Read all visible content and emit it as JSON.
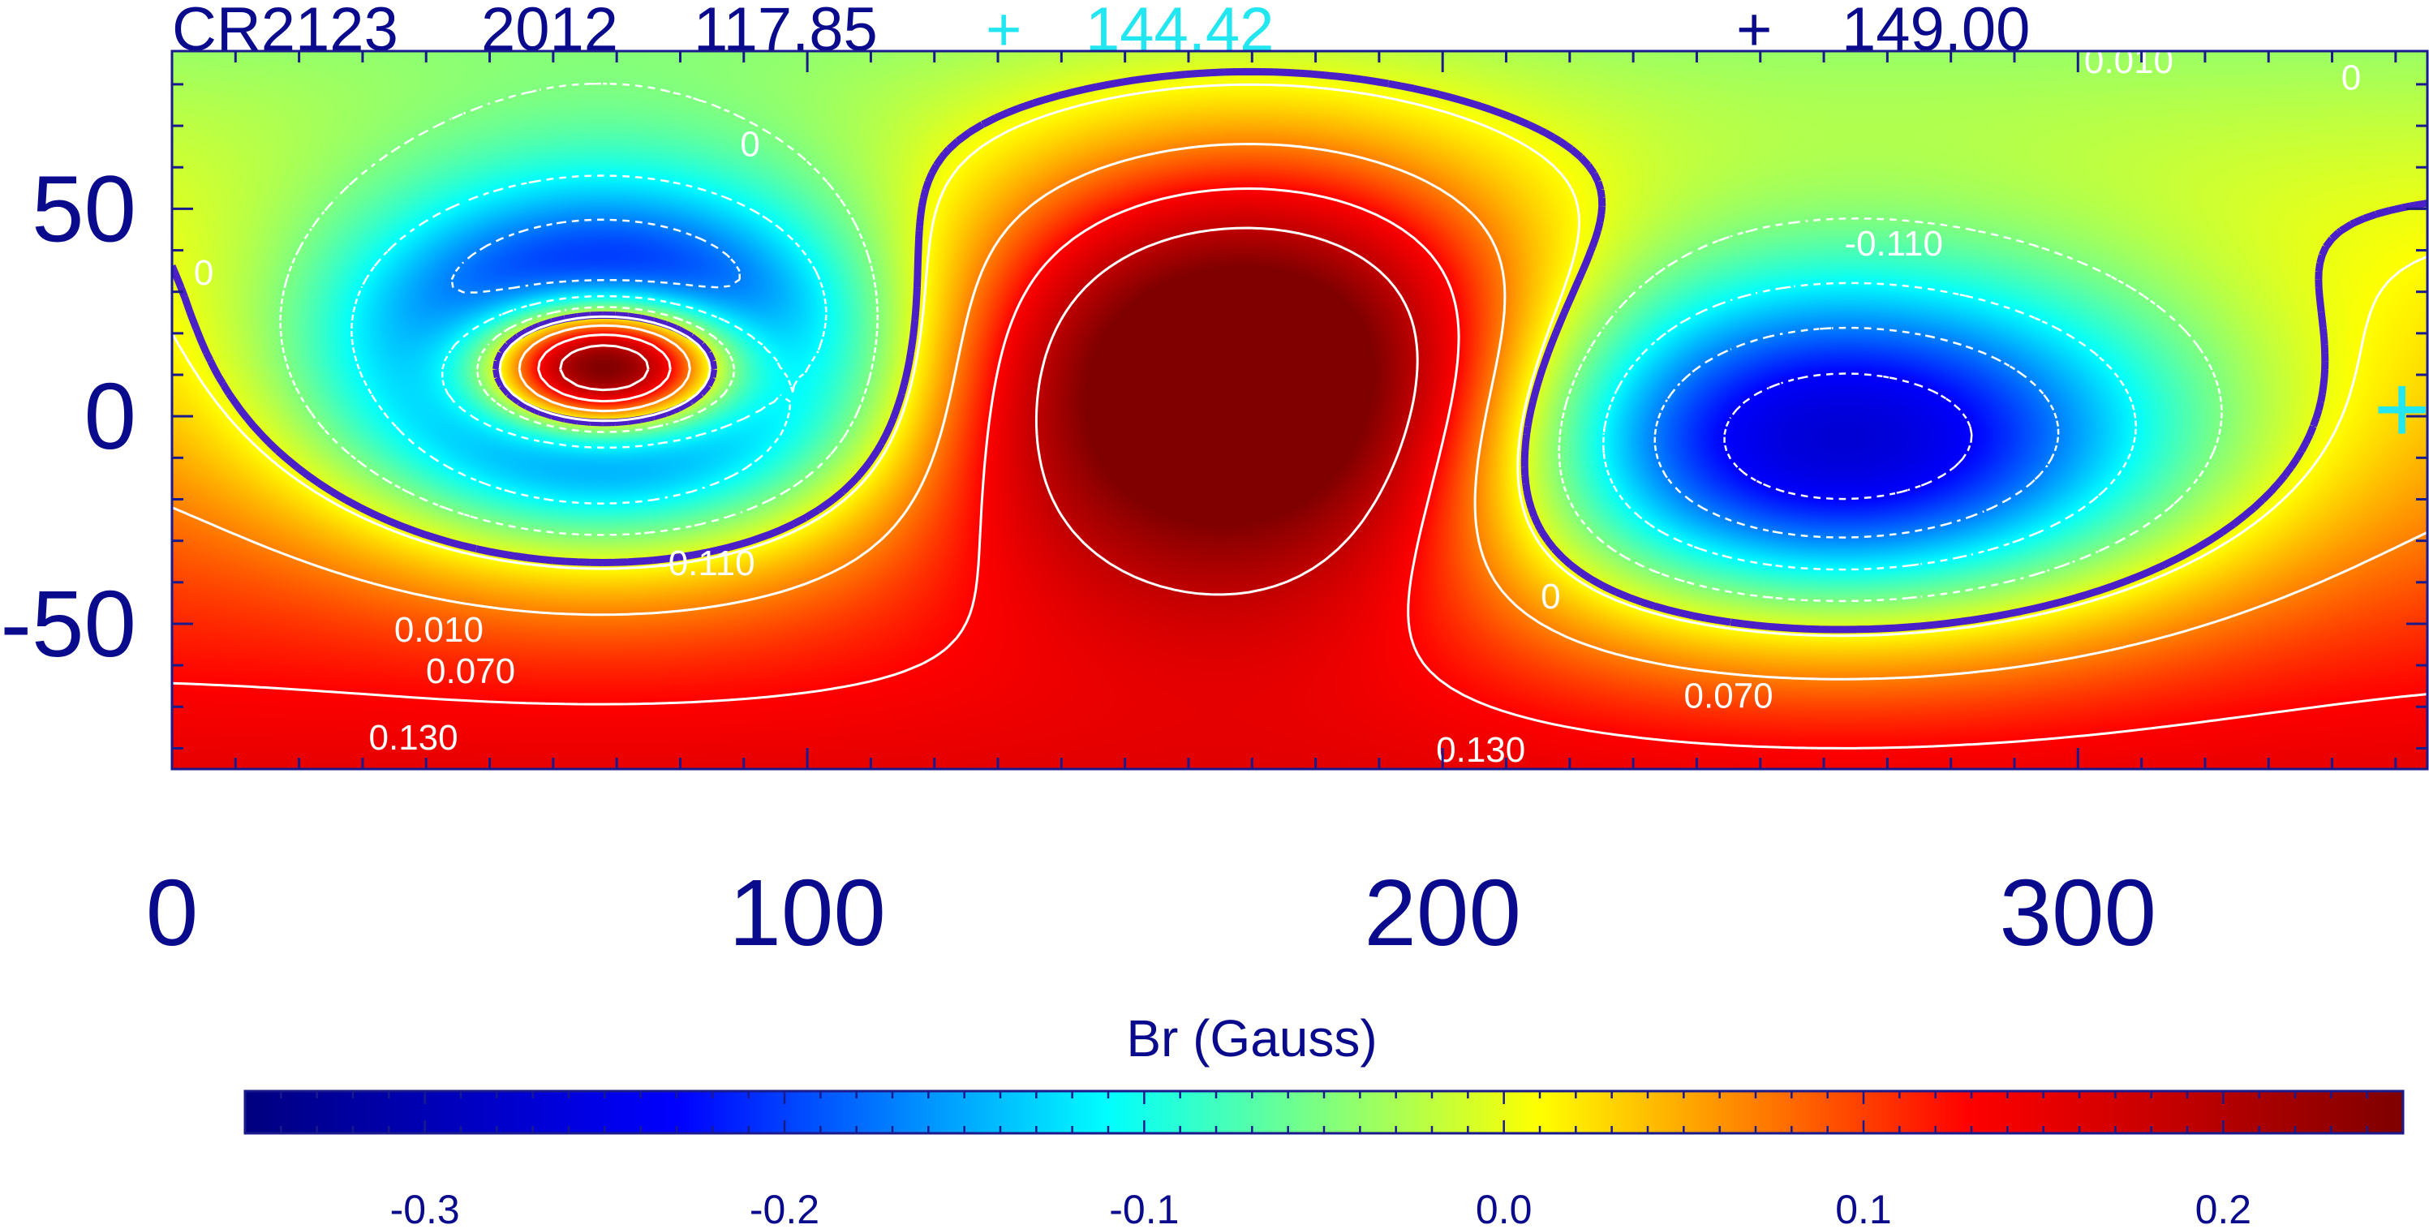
{
  "title": {
    "segments": [
      {
        "text": "CR2123",
        "color": "#0a0a8c"
      },
      {
        "text": "2012",
        "color": "#0a0a8c"
      },
      {
        "text": "117.85",
        "color": "#0a0a8c"
      },
      {
        "text": "+",
        "color": "#22e6f0"
      },
      {
        "text": "144.42",
        "color": "#22e6f0"
      },
      {
        "text": "+",
        "color": "#0a0a8c"
      },
      {
        "text": "149.00",
        "color": "#0a0a8c"
      }
    ]
  },
  "chart_data": {
    "type": "heatmap",
    "xlim": [
      0,
      355
    ],
    "ylim": [
      -85,
      88
    ],
    "x_ticks": [
      0,
      100,
      200,
      300
    ],
    "x_tick_labels": [
      "0",
      "100",
      "200",
      "300"
    ],
    "y_ticks": [
      -50,
      0,
      50
    ],
    "y_tick_labels": [
      "-50",
      "0",
      "50"
    ],
    "field": {
      "background": 0.06,
      "latitude_gradient": -0.0011,
      "blobs": [
        {
          "cx": 68,
          "cy": 12,
          "sx": 42,
          "sy": 40,
          "amp": -0.4
        },
        {
          "cx": 68,
          "cy": 12,
          "sx": 20,
          "sy": 16,
          "amp": 0.6
        },
        {
          "cx": 170,
          "cy": 10,
          "sx": 42,
          "sy": 48,
          "amp": 0.32
        },
        {
          "cx": 262,
          "cy": -8,
          "sx": 58,
          "sy": 42,
          "amp": -0.34
        }
      ]
    },
    "contours": [
      {
        "level": 0,
        "label": "0",
        "style": "dashed-thick",
        "color": "#4a1fc8"
      },
      {
        "level": 0.01,
        "label": "0.010",
        "style": "solid",
        "color": "#ffffff"
      },
      {
        "level": 0.07,
        "label": "0.070",
        "style": "solid",
        "color": "#ffffff"
      },
      {
        "level": 0.13,
        "label": "0.130",
        "style": "solid",
        "color": "#ffffff"
      },
      {
        "level": 0.19,
        "label": "",
        "style": "solid",
        "color": "#ffffff"
      },
      {
        "level": -0.05,
        "label": "",
        "style": "dotted",
        "color": "#ffffff"
      },
      {
        "level": -0.11,
        "label": "-0.110",
        "style": "dotted",
        "color": "#ffffff"
      },
      {
        "level": -0.17,
        "label": "",
        "style": "dotted",
        "color": "#ffffff"
      },
      {
        "level": -0.23,
        "label": "",
        "style": "dotted",
        "color": "#ffffff"
      },
      {
        "level": -0.29,
        "label": "",
        "style": "dotted",
        "color": "#ffffff"
      }
    ],
    "contour_labels": [
      {
        "text": "0",
        "x": 91,
        "y": 65
      },
      {
        "text": "0",
        "x": 5,
        "y": 34
      },
      {
        "text": "0",
        "x": 217,
        "y": -44
      },
      {
        "text": "0",
        "x": 343,
        "y": 81
      },
      {
        "text": "0.010",
        "x": 42,
        "y": -52
      },
      {
        "text": "0.010",
        "x": 308,
        "y": 85
      },
      {
        "text": "0.070",
        "x": 47,
        "y": -62
      },
      {
        "text": "0.070",
        "x": 245,
        "y": -68
      },
      {
        "text": "0.130",
        "x": 38,
        "y": -78
      },
      {
        "text": "0.130",
        "x": 206,
        "y": -81
      },
      {
        "text": "-0.110",
        "x": 84,
        "y": -36
      },
      {
        "text": "-0.110",
        "x": 271,
        "y": 41
      }
    ],
    "markers": [
      {
        "symbol": "+",
        "x": 351,
        "y": 0,
        "color": "#22e6f0"
      }
    ],
    "colorbar": {
      "title": "Br (Gauss)",
      "range": [
        -0.35,
        0.25
      ],
      "ticks": [
        -0.3,
        -0.2,
        -0.1,
        0.0,
        0.1,
        0.2
      ],
      "tick_labels": [
        "-0.3",
        "-0.2",
        "-0.1",
        "0.0",
        "0.1",
        "0.2"
      ],
      "colormap": [
        "#000080",
        "#0000ff",
        "#00ffff",
        "#ffff00",
        "#ff0000",
        "#800000"
      ]
    },
    "axis_color": "#1a1a8c",
    "tick_label_color": "#0a0a8c"
  }
}
